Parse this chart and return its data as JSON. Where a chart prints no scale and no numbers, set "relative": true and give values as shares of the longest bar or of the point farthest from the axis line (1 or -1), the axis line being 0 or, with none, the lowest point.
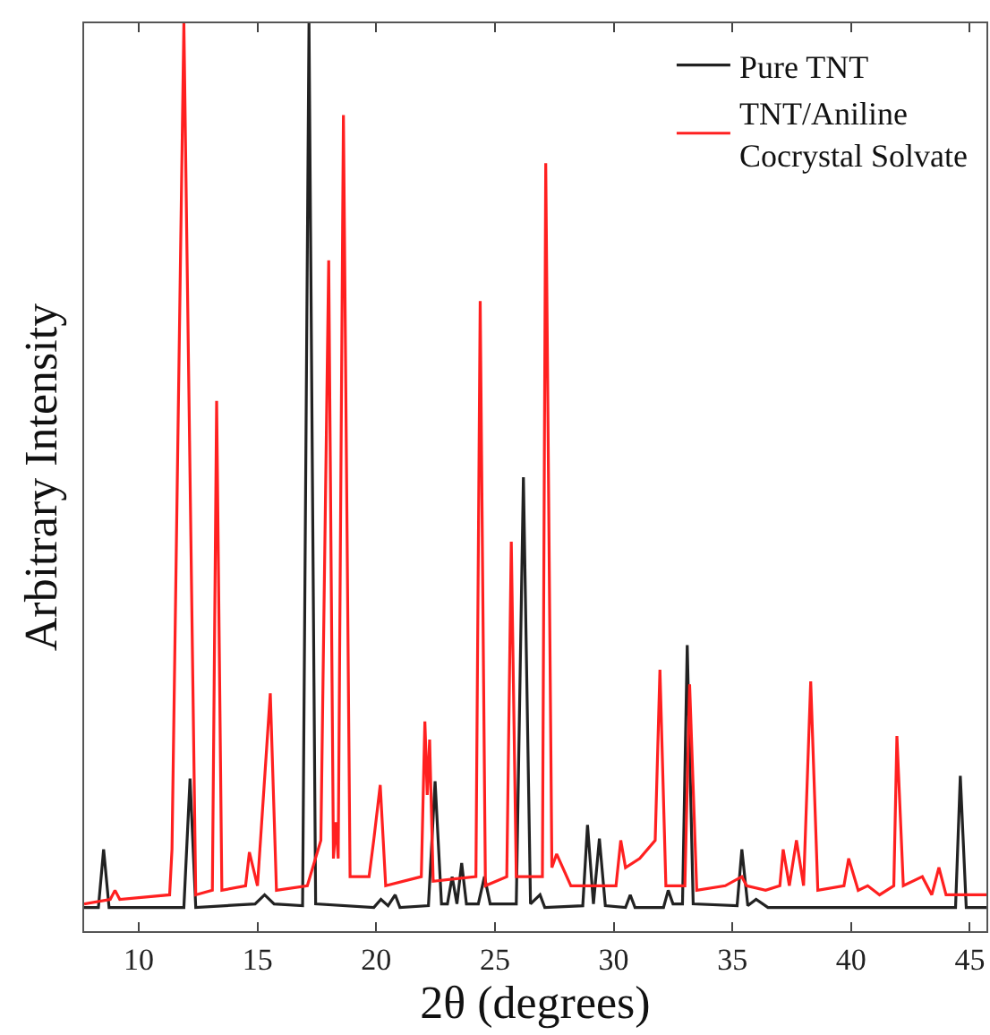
{
  "chart_data": {
    "type": "line",
    "relative": true,
    "xlabel": "2θ (degrees)",
    "ylabel": "Arbitrary Intensity",
    "xlim": [
      7.7,
      45.7
    ],
    "xticks": [
      10,
      15,
      20,
      25,
      30,
      35,
      40,
      45
    ],
    "legend": "top right",
    "series": [
      {
        "name": "Pure TNT",
        "color": "#222222",
        "x": [
          7.7,
          8.3,
          8.52,
          8.75,
          11.9,
          12.16,
          12.4,
          14.9,
          15.3,
          15.7,
          16.9,
          17.17,
          17.45,
          19.9,
          20.2,
          20.5,
          20.8,
          21.0,
          22.2,
          22.48,
          22.75,
          23.0,
          23.2,
          23.4,
          23.6,
          23.8,
          24.3,
          24.56,
          24.8,
          25.9,
          26.2,
          26.5,
          26.9,
          27.1,
          28.7,
          28.9,
          29.15,
          29.4,
          29.65,
          30.5,
          30.7,
          30.9,
          32.1,
          32.3,
          32.5,
          32.9,
          33.1,
          33.35,
          35.2,
          35.4,
          35.65,
          36.0,
          36.5,
          44.4,
          44.6,
          44.85,
          45.7
        ],
        "values": [
          0.026,
          0.026,
          0.09,
          0.026,
          0.026,
          0.168,
          0.026,
          0.03,
          0.04,
          0.03,
          0.028,
          1,
          0.03,
          0.026,
          0.035,
          0.028,
          0.04,
          0.026,
          0.028,
          0.165,
          0.03,
          0.03,
          0.06,
          0.03,
          0.075,
          0.03,
          0.03,
          0.06,
          0.03,
          0.03,
          0.5,
          0.03,
          0.04,
          0.026,
          0.028,
          0.117,
          0.03,
          0.102,
          0.028,
          0.026,
          0.04,
          0.026,
          0.026,
          0.045,
          0.03,
          0.03,
          0.315,
          0.03,
          0.028,
          0.09,
          0.028,
          0.035,
          0.026,
          0.026,
          0.171,
          0.026,
          0.026
        ]
      },
      {
        "name": "TNT/Aniline\nCocrystal Solvate",
        "color": "#ff2020",
        "x": [
          7.7,
          8.8,
          9.0,
          9.2,
          11.3,
          11.4,
          11.9,
          12.4,
          13.1,
          13.28,
          13.5,
          14.5,
          14.66,
          15.0,
          15.54,
          15.8,
          17.1,
          17.67,
          18.0,
          18.2,
          18.3,
          18.4,
          18.62,
          18.9,
          19.7,
          19.9,
          20.17,
          20.4,
          21.9,
          22.05,
          22.15,
          22.25,
          22.4,
          24.2,
          24.38,
          24.6,
          25.5,
          25.69,
          25.9,
          27.0,
          27.14,
          27.4,
          27.6,
          28.2,
          30.1,
          30.3,
          30.5,
          31.1,
          31.75,
          31.95,
          32.2,
          33.0,
          33.2,
          33.5,
          34.7,
          35.4,
          35.6,
          36.4,
          37.0,
          37.14,
          37.4,
          37.7,
          38.0,
          38.3,
          38.6,
          39.7,
          39.9,
          40.3,
          40.7,
          41.2,
          41.8,
          41.93,
          42.2,
          43.0,
          43.4,
          43.7,
          44.0,
          45.4,
          45.7
        ],
        "values": [
          0.03,
          0.035,
          0.045,
          0.035,
          0.04,
          0.09,
          1,
          0.04,
          0.045,
          0.584,
          0.045,
          0.05,
          0.087,
          0.05,
          0.262,
          0.045,
          0.05,
          0.1,
          0.739,
          0.08,
          0.12,
          0.08,
          0.899,
          0.06,
          0.06,
          0.101,
          0.161,
          0.05,
          0.06,
          0.231,
          0.15,
          0.211,
          0.055,
          0.06,
          0.694,
          0.05,
          0.06,
          0.429,
          0.06,
          0.06,
          0.846,
          0.07,
          0.085,
          0.05,
          0.05,
          0.1,
          0.07,
          0.08,
          0.1,
          0.288,
          0.05,
          0.05,
          0.272,
          0.045,
          0.05,
          0.06,
          0.05,
          0.045,
          0.05,
          0.09,
          0.05,
          0.1,
          0.05,
          0.275,
          0.045,
          0.05,
          0.08,
          0.045,
          0.05,
          0.04,
          0.05,
          0.215,
          0.05,
          0.06,
          0.04,
          0.07,
          0.04,
          0.04,
          0.04
        ]
      }
    ]
  }
}
